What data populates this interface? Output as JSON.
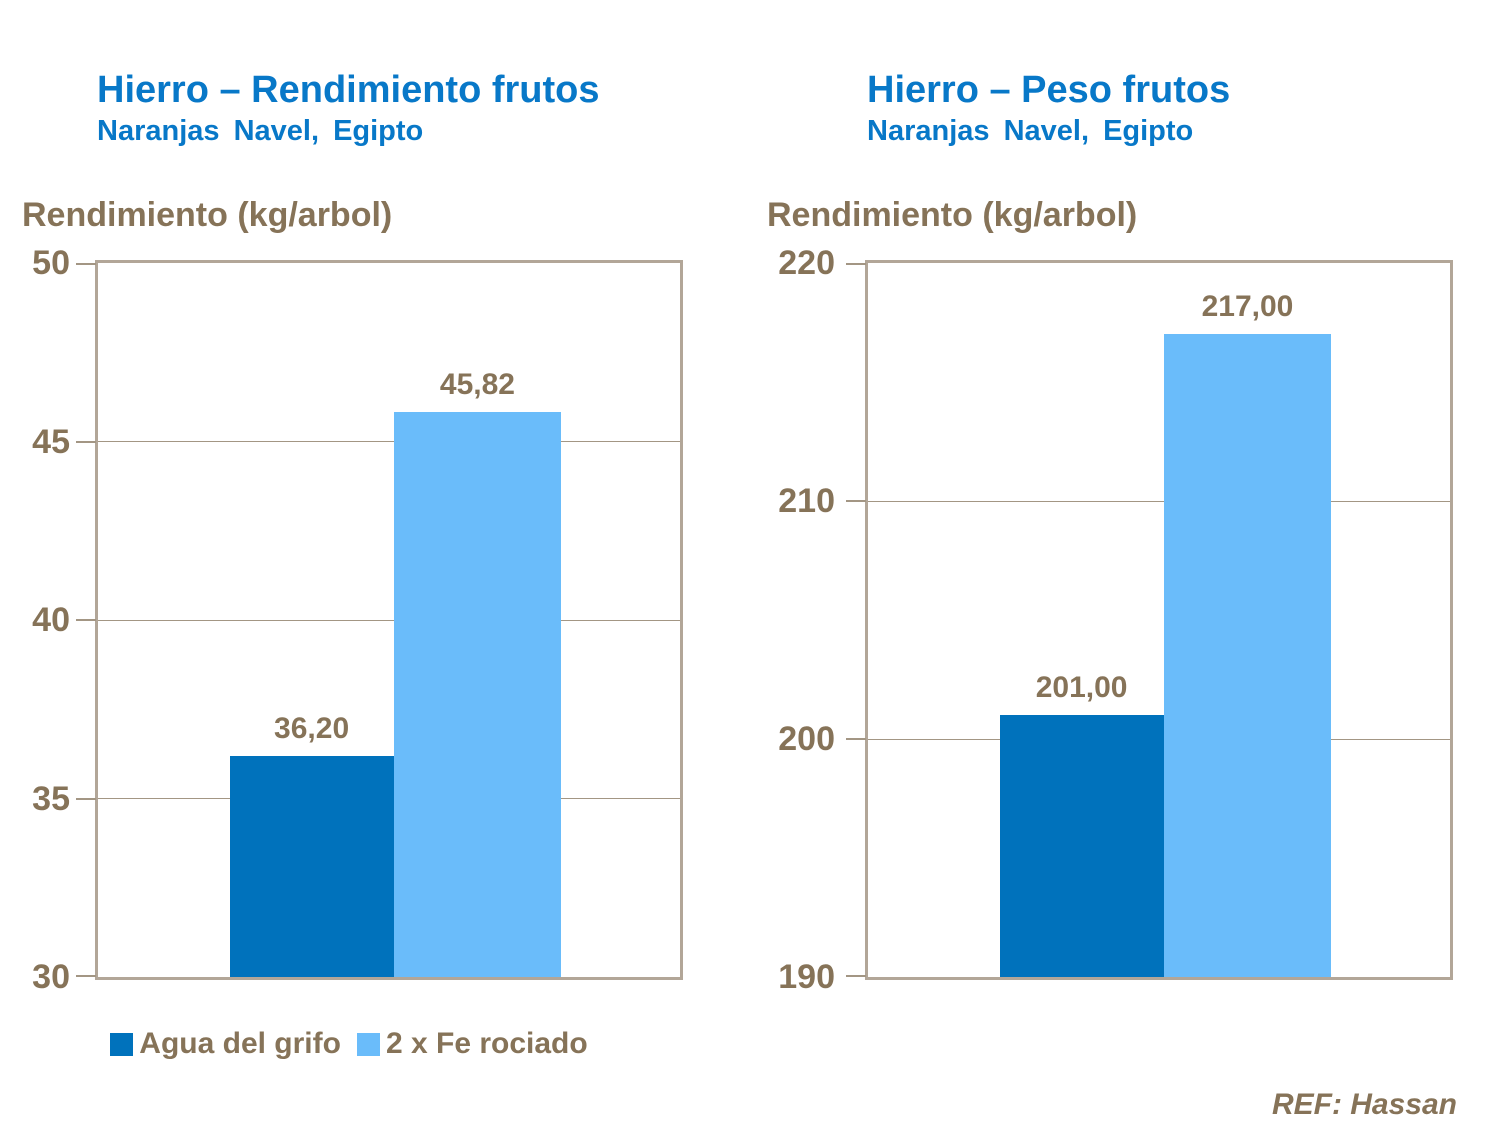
{
  "page": {
    "ref_label": "REF: Hassan"
  },
  "colors": {
    "title_blue": "#0878C8",
    "series_dark_blue": "#0072BC",
    "series_light_blue": "#6ABCFA",
    "text_brown": "#867358",
    "axis_border": "#B2A698",
    "gridline": "#A39684",
    "background": "#FFFFFF"
  },
  "legend": {
    "items": [
      {
        "label": "Agua del grifo",
        "color": "#0072BC"
      },
      {
        "label": "2 x Fe rociado",
        "color": "#6ABCFA"
      }
    ]
  },
  "chart_data": [
    {
      "type": "bar",
      "title": "Hierro – Rendimiento frutos",
      "subtitle": "Naranjas Navel, Egipto",
      "ylabel": "Rendimiento (kg/arbol)",
      "categories": [
        "Agua del grifo",
        "2 x Fe rociado"
      ],
      "values": [
        36.2,
        45.82
      ],
      "value_labels": [
        "36,20",
        "45,82"
      ],
      "ylim": [
        30,
        50
      ],
      "yticks": [
        30,
        35,
        40,
        45,
        50
      ],
      "grid": true,
      "bar_colors": [
        "#0072BC",
        "#6ABCFA"
      ],
      "legend_position": "bottom"
    },
    {
      "type": "bar",
      "title": "Hierro – Peso frutos",
      "subtitle": "Naranjas Navel, Egipto",
      "ylabel": "Rendimiento (kg/arbol)",
      "categories": [
        "Agua del grifo",
        "2 x Fe rociado"
      ],
      "values": [
        201.0,
        217.0
      ],
      "value_labels": [
        "201,00",
        "217,00"
      ],
      "ylim": [
        190,
        220
      ],
      "yticks": [
        190,
        200,
        210,
        220
      ],
      "grid": true,
      "bar_colors": [
        "#0072BC",
        "#6ABCFA"
      ],
      "legend_position": "none"
    }
  ]
}
